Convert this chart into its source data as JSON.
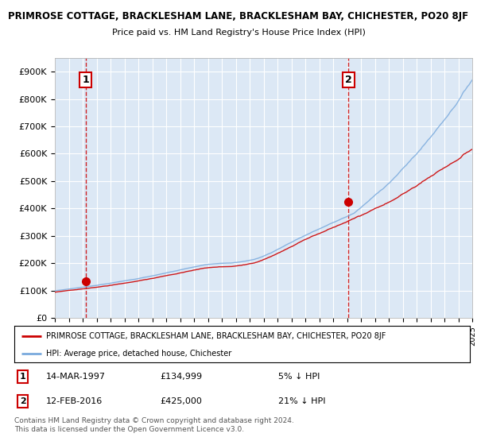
{
  "title1": "PRIMROSE COTTAGE, BRACKLESHAM LANE, BRACKLESHAM BAY, CHICHESTER, PO20 8JF",
  "title2": "Price paid vs. HM Land Registry's House Price Index (HPI)",
  "ylabel_ticks": [
    "£0",
    "£100K",
    "£200K",
    "£300K",
    "£400K",
    "£500K",
    "£600K",
    "£700K",
    "£800K",
    "£900K"
  ],
  "ytick_values": [
    0,
    100000,
    200000,
    300000,
    400000,
    500000,
    600000,
    700000,
    800000,
    900000
  ],
  "ylim": [
    0,
    950000
  ],
  "sale1_price": 134999,
  "sale1_date": "14-MAR-1997",
  "sale1_label": "5% ↓ HPI",
  "sale2_price": 425000,
  "sale2_date": "12-FEB-2016",
  "sale2_label": "21% ↓ HPI",
  "sale1_year": 1997.2,
  "sale2_year": 2016.1,
  "hpi_color": "#7aaadd",
  "price_color": "#cc0000",
  "vline_color": "#cc0000",
  "bg_color": "#dce8f5",
  "grid_color": "#ffffff",
  "legend_label_red": "PRIMROSE COTTAGE, BRACKLESHAM LANE, BRACKLESHAM BAY, CHICHESTER, PO20 8JF",
  "legend_label_blue": "HPI: Average price, detached house, Chichester",
  "footer": "Contains HM Land Registry data © Crown copyright and database right 2024.\nThis data is licensed under the Open Government Licence v3.0.",
  "annotation1": "1",
  "annotation2": "2",
  "xstart": 1995,
  "xend": 2025
}
